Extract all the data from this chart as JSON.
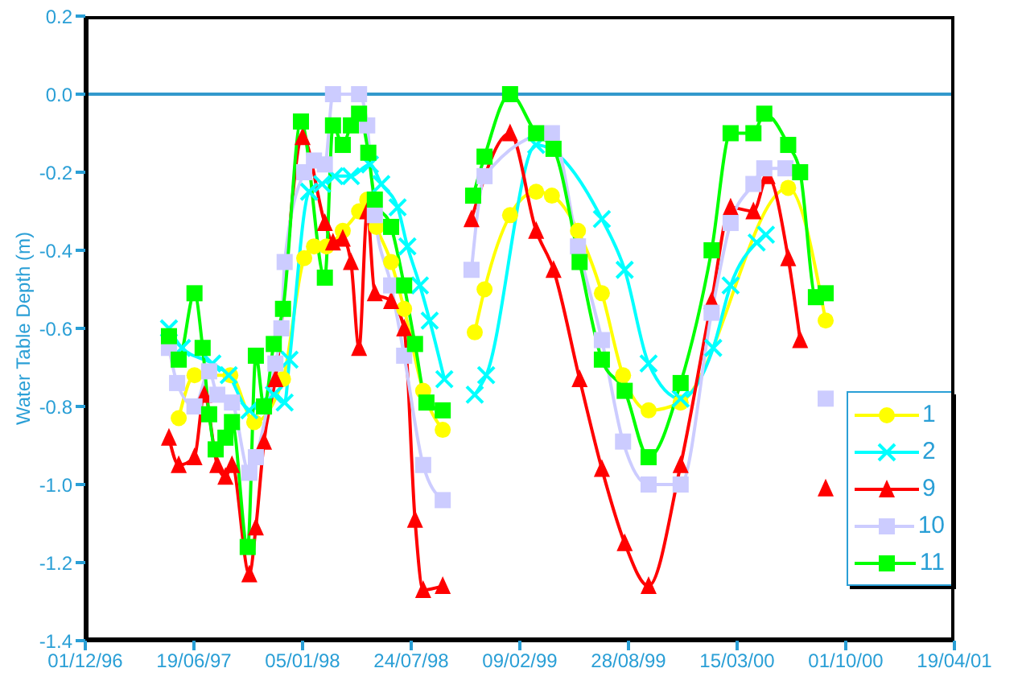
{
  "chart_data": {
    "type": "line",
    "ylabel": "Water Table Depth (m)",
    "xlim": [
      "1996-12-01",
      "2001-04-19"
    ],
    "xticks": [
      {
        "value": "1996-12-01",
        "label": "01/12/96"
      },
      {
        "value": "1997-06-19",
        "label": "19/06/97"
      },
      {
        "value": "1998-01-05",
        "label": "05/01/98"
      },
      {
        "value": "1998-07-24",
        "label": "24/07/98"
      },
      {
        "value": "1999-02-09",
        "label": "09/02/99"
      },
      {
        "value": "1999-08-28",
        "label": "28/08/99"
      },
      {
        "value": "2000-03-15",
        "label": "15/03/00"
      },
      {
        "value": "2000-10-01",
        "label": "01/10/00"
      },
      {
        "value": "2001-04-19",
        "label": "19/04/01"
      }
    ],
    "ylim": [
      -1.4,
      0.2
    ],
    "yticks": [
      -1.4,
      -1.2,
      {
        "value": -1,
        "label": "-1.0"
      },
      -0.8,
      -0.6,
      -0.4,
      -0.2,
      {
        "value": 0,
        "label": "0.0"
      },
      0.2
    ],
    "ref_lines": [
      {
        "axis": "y",
        "value": 0,
        "color": "#3399cc"
      }
    ],
    "legend": "right",
    "line_style": "solid",
    "series": [
      {
        "name": "1",
        "color": "#ffff00",
        "marker": "circle",
        "x": [
          "1997-05-22",
          "1997-06-20",
          "1997-08-25",
          "1997-10-08",
          "1997-11-30",
          "1998-01-08",
          "1998-01-26",
          "1998-02-18",
          "1998-03-20",
          "1998-04-19",
          "1998-05-04",
          "1998-05-21",
          "1998-06-17",
          "1998-07-11",
          "1998-08-15",
          "1998-09-20",
          "1998-10-15",
          "1998-11-18",
          "1998-12-06",
          "1999-01-22",
          "1999-03-11",
          "1999-04-09",
          "1999-05-27",
          "1999-07-10",
          "1999-08-18",
          "1999-10-04",
          "1999-12-02",
          "2000-06-17",
          "2000-08-25"
        ],
        "values": [
          -0.83,
          -0.72,
          -0.72,
          -0.84,
          -0.73,
          -0.42,
          -0.39,
          -0.39,
          -0.35,
          -0.3,
          -0.27,
          -0.34,
          -0.43,
          -0.55,
          -0.76,
          -0.86,
          null,
          -0.61,
          -0.5,
          -0.31,
          -0.25,
          -0.26,
          -0.35,
          -0.51,
          -0.72,
          -0.81,
          -0.79,
          -0.24,
          -0.58
        ]
      },
      {
        "name": "2",
        "color": "#00ffff",
        "marker": "cross",
        "x": [
          "1997-05-04",
          "1997-05-28",
          "1997-07-23",
          "1997-08-22",
          "1997-09-29",
          "1997-11-13",
          "1997-12-03",
          "1997-12-12",
          "1998-01-17",
          "1998-02-10",
          "1998-03-05",
          "1998-04-04",
          "1998-05-09",
          "1998-05-30",
          "1998-06-29",
          "1998-07-17",
          "1998-08-09",
          "1998-08-27",
          "1998-09-23",
          "1998-10-15",
          "1998-11-18",
          "1998-12-09",
          "1999-03-11",
          "1999-07-10",
          "1999-08-21",
          "1999-10-04",
          "1999-12-02",
          "2000-01-31",
          "2000-03-03",
          "2000-04-20",
          "2000-05-07"
        ],
        "values": [
          -0.6,
          -0.65,
          -0.69,
          -0.72,
          -0.81,
          -0.77,
          -0.79,
          -0.68,
          -0.25,
          -0.23,
          -0.21,
          -0.21,
          -0.18,
          -0.23,
          -0.29,
          -0.39,
          -0.49,
          -0.58,
          -0.73,
          null,
          -0.77,
          -0.72,
          -0.13,
          -0.32,
          -0.45,
          -0.69,
          -0.78,
          -0.65,
          -0.49,
          -0.38,
          -0.36
        ]
      },
      {
        "name": "9",
        "color": "#ff0000",
        "marker": "triangle",
        "x": [
          "1997-05-04",
          "1997-05-22",
          "1997-06-20",
          "1997-07-08",
          "1997-08-01",
          "1997-08-16",
          "1997-08-28",
          "1997-09-29",
          "1997-10-11",
          "1997-10-26",
          "1997-11-16",
          "1998-01-05",
          "1998-02-15",
          "1998-03-02",
          "1998-03-20",
          "1998-04-04",
          "1998-04-19",
          "1998-05-04",
          "1998-05-18",
          "1998-06-17",
          "1998-07-11",
          "1998-07-31",
          "1998-08-15",
          "1998-09-20",
          "1998-10-15",
          "1998-11-12",
          "1999-01-22",
          "1999-03-11",
          "1999-04-12",
          "1999-05-30",
          "1999-07-10",
          "1999-08-21",
          "1999-10-04",
          "1999-12-02",
          "2000-01-28",
          "2000-03-03",
          "2000-04-14",
          "2000-05-10",
          "2000-06-17",
          "2000-07-09",
          "2000-08-01",
          "2000-08-25"
        ],
        "values": [
          -0.88,
          -0.95,
          -0.93,
          -0.77,
          -0.95,
          -0.98,
          -0.95,
          -1.23,
          -1.11,
          -0.89,
          -0.73,
          -0.11,
          -0.33,
          -0.38,
          -0.37,
          -0.43,
          -0.65,
          -0.3,
          -0.51,
          -0.53,
          -0.6,
          -1.09,
          -1.27,
          -1.26,
          null,
          -0.32,
          -0.1,
          -0.35,
          -0.45,
          -0.73,
          -0.96,
          -1.15,
          -1.26,
          -0.95,
          -0.53,
          -0.29,
          -0.3,
          -0.21,
          -0.42,
          -0.63,
          null,
          -1.01
        ]
      },
      {
        "name": "10",
        "color": "#ccccff",
        "marker": "square",
        "x": [
          "1997-05-04",
          "1997-05-19",
          "1997-06-20",
          "1997-07-17",
          "1997-08-01",
          "1997-08-28",
          "1997-09-29",
          "1997-10-11",
          "1997-11-16",
          "1997-11-27",
          "1997-12-03",
          "1998-01-08",
          "1998-01-26",
          "1998-02-15",
          "1998-03-02",
          "1998-04-19",
          "1998-05-04",
          "1998-05-18",
          "1998-06-17",
          "1998-07-11",
          "1998-08-15",
          "1998-09-20",
          "1998-10-15",
          "1998-11-12",
          "1998-12-06",
          "1999-04-09",
          "1999-05-27",
          "1999-07-10",
          "1999-08-18",
          "1999-10-04",
          "1999-12-02",
          "2000-01-28",
          "2000-03-03",
          "2000-04-14",
          "2000-05-04",
          "2000-06-12",
          "2000-08-01",
          "2000-08-25"
        ],
        "values": [
          -0.65,
          -0.74,
          -0.8,
          -0.71,
          -0.77,
          -0.79,
          -0.97,
          -0.93,
          -0.69,
          -0.6,
          -0.43,
          -0.2,
          -0.17,
          -0.18,
          0,
          0,
          -0.08,
          -0.31,
          -0.49,
          -0.67,
          -0.95,
          -1.04,
          null,
          -0.45,
          -0.21,
          -0.1,
          -0.39,
          -0.63,
          -0.89,
          -1,
          -1,
          -0.56,
          -0.33,
          -0.23,
          -0.19,
          -0.19,
          null,
          -0.78
        ]
      },
      {
        "name": "11",
        "color": "#00ff00",
        "marker": "square",
        "x": [
          "1997-05-04",
          "1997-05-22",
          "1997-06-20",
          "1997-07-05",
          "1997-07-17",
          "1997-07-29",
          "1997-08-16",
          "1997-08-28",
          "1997-09-26",
          "1997-10-11",
          "1997-10-26",
          "1997-11-13",
          "1997-11-30",
          "1998-01-02",
          "1998-02-15",
          "1998-03-02",
          "1998-03-20",
          "1998-04-04",
          "1998-04-19",
          "1998-05-06",
          "1998-05-18",
          "1998-06-17",
          "1998-07-11",
          "1998-07-31",
          "1998-08-21",
          "1998-09-20",
          "1998-10-15",
          "1998-11-15",
          "1998-12-06",
          "1999-01-22",
          "1999-03-11",
          "1999-04-12",
          "1999-05-30",
          "1999-07-10",
          "1999-08-21",
          "1999-10-04",
          "1999-12-02",
          "2000-01-28",
          "2000-03-03",
          "2000-04-14",
          "2000-05-04",
          "2000-06-17",
          "2000-07-09",
          "2000-08-07",
          "2000-08-25"
        ],
        "values": [
          -0.62,
          -0.68,
          -0.51,
          -0.65,
          -0.82,
          -0.91,
          -0.88,
          -0.84,
          -1.16,
          -0.67,
          -0.8,
          -0.64,
          -0.55,
          -0.07,
          -0.47,
          -0.08,
          -0.13,
          -0.08,
          -0.05,
          -0.15,
          -0.27,
          -0.34,
          -0.49,
          -0.64,
          -0.79,
          -0.81,
          null,
          -0.26,
          -0.16,
          0,
          -0.1,
          -0.14,
          -0.43,
          -0.68,
          -0.76,
          -0.93,
          -0.74,
          -0.4,
          -0.1,
          -0.1,
          -0.05,
          -0.13,
          -0.2,
          -0.52,
          -0.51
        ]
      }
    ]
  }
}
